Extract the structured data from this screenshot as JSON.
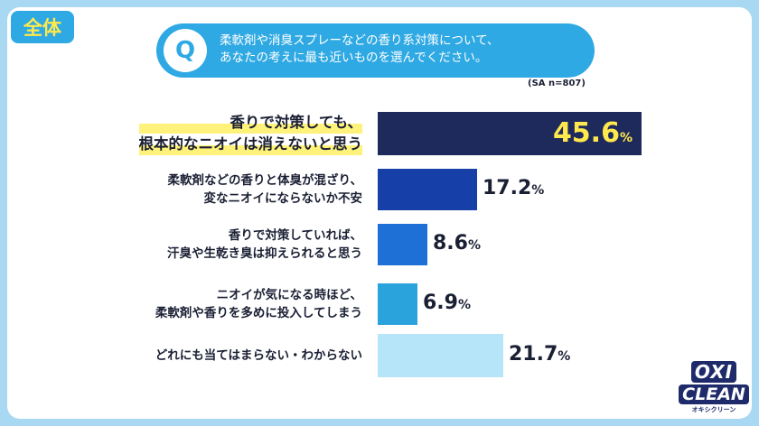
{
  "tag": "全体",
  "question": {
    "icon_letter": "Q",
    "line1": "柔軟剤や消臭スプレーなどの香り系対策について、",
    "line2": "あなたの考えに最も近いものを選んでください。"
  },
  "sample_note": "(SA n=807)",
  "chart_data": {
    "type": "bar",
    "orientation": "horizontal",
    "categories": [
      [
        "香りで対策しても、",
        "根本的なニオイは消えないと思う"
      ],
      [
        "柔軟剤などの香りと体臭が混ざり、",
        "変なニオイにならないか不安"
      ],
      [
        "香りで対策していれば、",
        "汗臭や生乾き臭は抑えられると思う"
      ],
      [
        "ニオイが気になる時ほど、",
        "柔軟剤や香りを多めに投入してしまう"
      ],
      [
        "どれにも当てはまらない・わからない"
      ]
    ],
    "values": [
      45.6,
      17.2,
      8.6,
      6.9,
      21.7
    ],
    "unit": "%",
    "colors": [
      "#1f2a5c",
      "#1640a8",
      "#1e6fd6",
      "#2aa2dc",
      "#b6e4f8"
    ],
    "highlight_index": 0,
    "highlight_value_color": "#ffe94d"
  },
  "logo": {
    "line1": "OXI",
    "line2": "CLEAN",
    "line3": "オキシクリーン"
  }
}
